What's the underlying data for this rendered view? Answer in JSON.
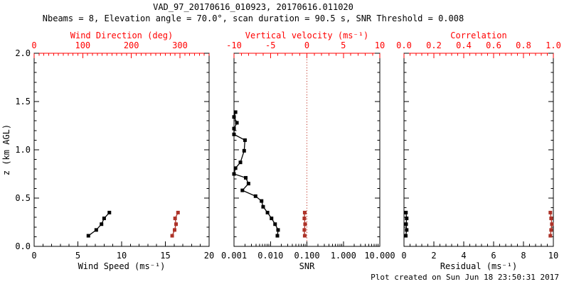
{
  "header": {
    "title": "VAD_97_20170616_010923, 20170616.011020",
    "subtitle": "Nbeams = 8, Elevation angle = 70.0°, scan duration = 90.5 s, SNR Threshold = 0.008"
  },
  "footer": {
    "created": "Plot created on Sun Jun 18 23:50:31 2017"
  },
  "colors": {
    "frame": "#000000",
    "axis_red": "#ff0000",
    "data_black": "#000000",
    "data_red": "#ad3228",
    "refline_red": "#c0392b",
    "background": "#ffffff"
  },
  "chart_data": [
    {
      "id": "wind",
      "type": "line",
      "y_axis": {
        "label": "z (km AGL)",
        "min": 0,
        "max": 2,
        "ticks": [
          0,
          0.5,
          1,
          1.5,
          2
        ],
        "tick_labels": [
          "0.0",
          "0.5",
          "1.0",
          "1.5",
          "2.0"
        ],
        "minor_step": 0.1,
        "show_labels": true
      },
      "bottom_axis": {
        "label": "Wind Speed (ms⁻¹)",
        "scale": "linear",
        "min": 0,
        "max": 20,
        "ticks": [
          0,
          5,
          10,
          15,
          20
        ],
        "tick_labels": [
          "0",
          "5",
          "10",
          "15",
          "20"
        ],
        "minor_step": 1,
        "color": "#000000"
      },
      "top_axis": {
        "label": "Wind Direction (deg)",
        "scale": "linear",
        "min": 0,
        "max": 360,
        "ticks": [
          0,
          100,
          200,
          300
        ],
        "tick_labels": [
          "0",
          "100",
          "200",
          "300"
        ],
        "minor_step": 10,
        "color": "#ff0000"
      },
      "series": [
        {
          "name": "wind-speed",
          "axis": "bottom",
          "color": "#000000",
          "marker": "square",
          "points": [
            [
              6.2,
              0.11
            ],
            [
              7.1,
              0.17
            ],
            [
              7.7,
              0.23
            ],
            [
              8.0,
              0.29
            ],
            [
              8.6,
              0.35
            ]
          ]
        },
        {
          "name": "wind-direction",
          "axis": "top",
          "color": "#ad3228",
          "marker": "square",
          "points": [
            [
              284,
              0.11
            ],
            [
              289,
              0.17
            ],
            [
              292,
              0.23
            ],
            [
              290,
              0.29
            ],
            [
              296,
              0.35
            ]
          ]
        }
      ]
    },
    {
      "id": "snr",
      "type": "line",
      "y_axis": {
        "label": "",
        "min": 0,
        "max": 2,
        "ticks": [
          0,
          0.5,
          1,
          1.5,
          2
        ],
        "tick_labels": [
          "",
          "",
          "",
          "",
          ""
        ],
        "minor_step": 0.1,
        "show_labels": false
      },
      "bottom_axis": {
        "label": "SNR",
        "scale": "log",
        "min": 0.001,
        "max": 10,
        "ticks": [
          0.001,
          0.01,
          0.1,
          1,
          10
        ],
        "tick_labels": [
          "0.001",
          "0.010",
          "0.100",
          "1.000",
          "10.000"
        ],
        "color": "#000000"
      },
      "top_axis": {
        "label": "Vertical velocity (ms⁻¹)",
        "scale": "linear",
        "min": -10,
        "max": 10,
        "ticks": [
          -10,
          -5,
          0,
          5,
          10
        ],
        "tick_labels": [
          "-10",
          "-5",
          "0",
          "5",
          "10"
        ],
        "minor_step": 1,
        "color": "#ff0000"
      },
      "refline": {
        "axis": "top",
        "value": 0,
        "color": "#c0392b",
        "style": "dotted"
      },
      "series": [
        {
          "name": "snr-profile",
          "axis": "bottom",
          "color": "#000000",
          "marker": "square",
          "points": [
            [
              0.0155,
              0.11
            ],
            [
              0.0162,
              0.17
            ],
            [
              0.0134,
              0.23
            ],
            [
              0.0107,
              0.29
            ],
            [
              0.0083,
              0.35
            ],
            [
              0.0063,
              0.41
            ],
            [
              0.0057,
              0.47
            ],
            [
              0.0039,
              0.52
            ],
            [
              0.0017,
              0.58
            ],
            [
              0.0025,
              0.65
            ],
            [
              0.0021,
              0.71
            ],
            [
              0.001,
              0.75
            ],
            [
              0.0011,
              0.81
            ],
            [
              0.0015,
              0.87
            ],
            [
              0.0019,
              0.99
            ],
            [
              0.002,
              1.1
            ],
            [
              0.001,
              1.16
            ],
            [
              0.001,
              1.22
            ],
            [
              0.0012,
              1.28
            ],
            [
              0.001,
              1.34
            ],
            [
              0.0011,
              1.39
            ]
          ]
        },
        {
          "name": "vertical-velocity",
          "axis": "top",
          "color": "#ad3228",
          "marker": "square",
          "points": [
            [
              -0.3,
              0.11
            ],
            [
              -0.35,
              0.17
            ],
            [
              -0.25,
              0.23
            ],
            [
              -0.35,
              0.29
            ],
            [
              -0.3,
              0.35
            ]
          ]
        }
      ]
    },
    {
      "id": "residual",
      "type": "line",
      "y_axis": {
        "label": "",
        "min": 0,
        "max": 2,
        "ticks": [
          0,
          0.5,
          1,
          1.5,
          2
        ],
        "tick_labels": [
          "",
          "",
          "",
          "",
          ""
        ],
        "minor_step": 0.1,
        "show_labels": false
      },
      "bottom_axis": {
        "label": "Residual (ms⁻¹)",
        "scale": "linear",
        "min": 0,
        "max": 10,
        "ticks": [
          0,
          2,
          4,
          6,
          8,
          10
        ],
        "tick_labels": [
          "0",
          "2",
          "4",
          "6",
          "8",
          "10"
        ],
        "minor_step": 0.4,
        "color": "#000000"
      },
      "top_axis": {
        "label": "Correlation",
        "scale": "linear",
        "min": 0,
        "max": 1,
        "ticks": [
          0,
          0.2,
          0.4,
          0.6,
          0.8,
          1
        ],
        "tick_labels": [
          "0.0",
          "0.2",
          "0.4",
          "0.6",
          "0.8",
          "1.0"
        ],
        "minor_step": 0.04,
        "color": "#ff0000"
      },
      "series": [
        {
          "name": "residual",
          "axis": "bottom",
          "color": "#000000",
          "marker": "square",
          "points": [
            [
              0.12,
              0.11
            ],
            [
              0.18,
              0.17
            ],
            [
              0.14,
              0.23
            ],
            [
              0.18,
              0.29
            ],
            [
              0.13,
              0.35
            ]
          ]
        },
        {
          "name": "correlation",
          "axis": "top",
          "color": "#ad3228",
          "marker": "square",
          "points": [
            [
              0.98,
              0.11
            ],
            [
              0.985,
              0.17
            ],
            [
              0.99,
              0.23
            ],
            [
              0.985,
              0.29
            ],
            [
              0.98,
              0.35
            ]
          ]
        }
      ]
    }
  ]
}
